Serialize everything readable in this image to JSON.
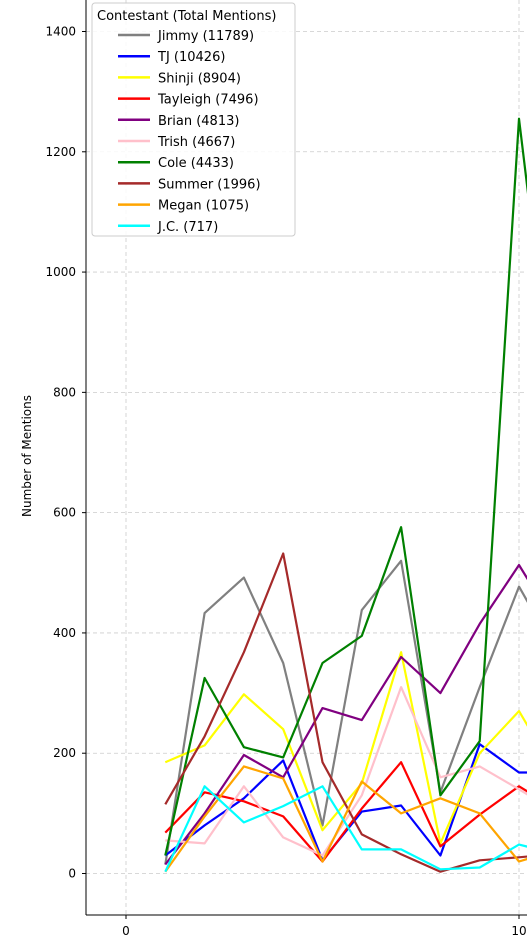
{
  "chart_data": {
    "type": "line",
    "title": "",
    "xlabel": "",
    "ylabel": "Number of Mentions",
    "xlim": [
      -1,
      10
    ],
    "ylim": [
      -70,
      1470
    ],
    "x_ticks": [
      0,
      10
    ],
    "y_ticks": [
      0,
      200,
      400,
      600,
      800,
      1000,
      1200,
      1400
    ],
    "grid": true,
    "legend_title": "Contestant (Total Mentions)",
    "legend_position": "top-left",
    "x": [
      1,
      2,
      3,
      4,
      5,
      6,
      7,
      8,
      9,
      10,
      10.5
    ],
    "series": [
      {
        "name": "Jimmy (11789)",
        "color": "#808080",
        "values": [
          15,
          433,
          492,
          350,
          80,
          438,
          520,
          135,
          310,
          477,
          420
        ]
      },
      {
        "name": "TJ (10426)",
        "color": "#0000ff",
        "values": [
          30,
          80,
          125,
          188,
          22,
          103,
          113,
          30,
          215,
          168,
          168
        ]
      },
      {
        "name": "Shinji (8904)",
        "color": "#ffff00",
        "values": [
          185,
          213,
          298,
          240,
          72,
          150,
          368,
          50,
          200,
          270,
          215
        ]
      },
      {
        "name": "Tayleigh (7496)",
        "color": "#ff0000",
        "values": [
          68,
          135,
          120,
          95,
          20,
          108,
          185,
          45,
          98,
          145,
          125
        ]
      },
      {
        "name": "Brian (4813)",
        "color": "#800080",
        "values": [
          15,
          100,
          197,
          160,
          275,
          255,
          360,
          300,
          415,
          513,
          460
        ]
      },
      {
        "name": "Trish (4667)",
        "color": "#ffc0cb",
        "values": [
          55,
          50,
          145,
          60,
          30,
          130,
          310,
          160,
          178,
          140,
          120
        ]
      },
      {
        "name": "Cole (4433)",
        "color": "#008000",
        "values": [
          30,
          325,
          210,
          193,
          350,
          395,
          576,
          130,
          220,
          1255,
          985
        ]
      },
      {
        "name": "Summer (1996)",
        "color": "#a52a2a",
        "values": [
          115,
          228,
          368,
          532,
          185,
          65,
          32,
          3,
          22,
          27,
          30
        ]
      },
      {
        "name": "Megan (1075)",
        "color": "#ffa500",
        "values": [
          3,
          95,
          178,
          158,
          20,
          153,
          100,
          125,
          100,
          20,
          30
        ]
      },
      {
        "name": "J.C. (717)",
        "color": "#00ffff",
        "values": [
          3,
          145,
          85,
          112,
          145,
          40,
          40,
          7,
          10,
          48,
          40
        ]
      }
    ]
  }
}
